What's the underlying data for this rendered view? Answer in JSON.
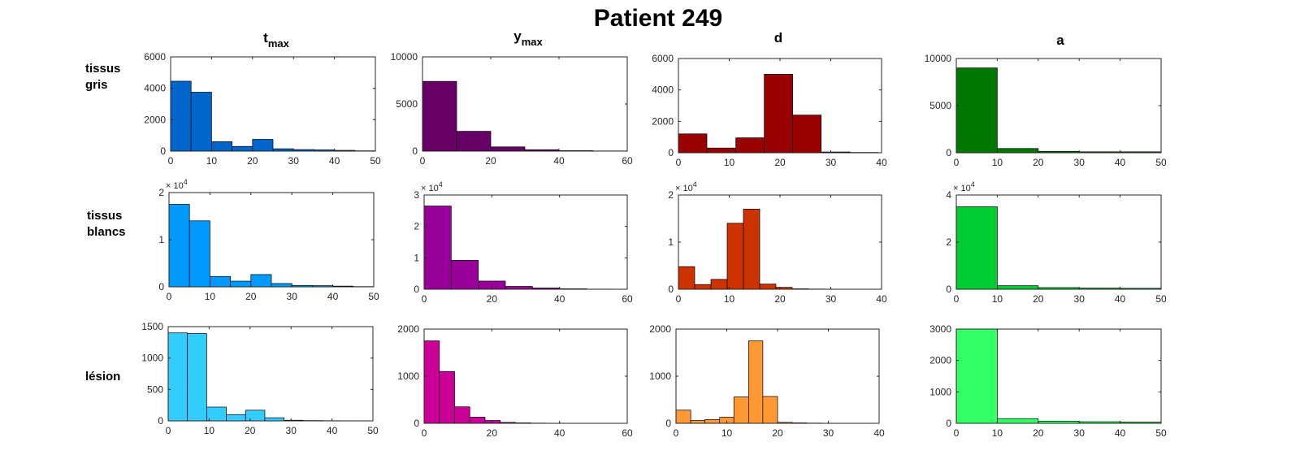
{
  "title": "Patient 249",
  "columns": [
    {
      "base": "t",
      "sub": "max"
    },
    {
      "base": "y",
      "sub": "max"
    },
    {
      "base": "d",
      "sub": ""
    },
    {
      "base": "a",
      "sub": ""
    }
  ],
  "rows": [
    {
      "line1": "tissus",
      "line2": "gris"
    },
    {
      "line1": "tissus",
      "line2": "blancs"
    },
    {
      "line1": "lésion",
      "line2": ""
    }
  ],
  "exponent_label": {
    "base": "× 10",
    "exp": "4"
  },
  "chart_data": [
    {
      "type": "bar",
      "panel": "tissus gris / tmax",
      "color": "#0066CC",
      "xlim": [
        0,
        50
      ],
      "xticks": [
        0,
        10,
        20,
        30,
        40,
        50
      ],
      "ylim": [
        0,
        6000
      ],
      "yticks": [
        0,
        2000,
        4000,
        6000
      ],
      "ytick_labels": [
        "0",
        "2000",
        "4000",
        "6000"
      ],
      "multiplier": false,
      "edges": [
        0,
        5,
        10,
        15,
        20,
        25,
        30,
        35,
        40,
        45,
        50
      ],
      "values": [
        4450,
        3750,
        600,
        300,
        750,
        150,
        100,
        80,
        50,
        20
      ]
    },
    {
      "type": "bar",
      "panel": "tissus gris / ymax",
      "color": "#660066",
      "xlim": [
        0,
        60
      ],
      "xticks": [
        0,
        20,
        40,
        60
      ],
      "ylim": [
        0,
        10000
      ],
      "yticks": [
        0,
        5000,
        10000
      ],
      "ytick_labels": [
        "0",
        "5000",
        "10000"
      ],
      "multiplier": false,
      "edges": [
        0,
        10,
        20,
        30,
        40,
        50,
        60
      ],
      "values": [
        7400,
        2100,
        450,
        150,
        50,
        20
      ]
    },
    {
      "type": "bar",
      "panel": "tissus gris / d",
      "color": "#990000",
      "xlim": [
        0,
        40
      ],
      "xticks": [
        0,
        10,
        20,
        30,
        40
      ],
      "ylim": [
        0,
        6000
      ],
      "yticks": [
        0,
        2000,
        4000,
        6000
      ],
      "ytick_labels": [
        "0",
        "2000",
        "4000",
        "6000"
      ],
      "multiplier": false,
      "edges": [
        0,
        5.6,
        11.3,
        16.9,
        22.5,
        28.1,
        33.8,
        39.4
      ],
      "values": [
        1200,
        300,
        950,
        5000,
        2400,
        50,
        20
      ]
    },
    {
      "type": "bar",
      "panel": "tissus gris / a",
      "color": "#007700",
      "xlim": [
        0,
        50
      ],
      "xticks": [
        0,
        10,
        20,
        30,
        40,
        50
      ],
      "ylim": [
        0,
        10000
      ],
      "yticks": [
        0,
        5000,
        10000
      ],
      "ytick_labels": [
        "0",
        "5000",
        "10000"
      ],
      "multiplier": false,
      "edges": [
        0,
        10,
        20,
        30,
        40,
        50
      ],
      "values": [
        9000,
        450,
        150,
        100,
        100
      ]
    },
    {
      "type": "bar",
      "panel": "tissus blancs / tmax",
      "color": "#0099FF",
      "xlim": [
        0,
        50
      ],
      "xticks": [
        0,
        10,
        20,
        30,
        40,
        50
      ],
      "ylim": [
        0,
        20000
      ],
      "yticks": [
        0,
        10000,
        20000
      ],
      "ytick_labels": [
        "0",
        "1",
        "2"
      ],
      "multiplier": true,
      "edges": [
        0,
        5,
        10,
        15,
        20,
        25,
        30,
        35,
        40,
        45,
        50
      ],
      "values": [
        17500,
        14000,
        2200,
        1200,
        2600,
        700,
        300,
        250,
        150,
        50
      ]
    },
    {
      "type": "bar",
      "panel": "tissus blancs / ymax",
      "color": "#990099",
      "xlim": [
        0,
        60
      ],
      "xticks": [
        0,
        20,
        40,
        60
      ],
      "ylim": [
        0,
        30000
      ],
      "yticks": [
        0,
        10000,
        20000,
        30000
      ],
      "ytick_labels": [
        "0",
        "1",
        "2",
        "3"
      ],
      "multiplier": true,
      "edges": [
        0,
        8,
        16,
        24,
        32,
        40,
        48,
        56
      ],
      "values": [
        26500,
        9200,
        2600,
        900,
        400,
        150,
        50
      ]
    },
    {
      "type": "bar",
      "panel": "tissus blancs / d",
      "color": "#CC3300",
      "xlim": [
        0,
        40
      ],
      "xticks": [
        0,
        10,
        20,
        30,
        40
      ],
      "ylim": [
        0,
        20000
      ],
      "yticks": [
        0,
        10000,
        20000
      ],
      "ytick_labels": [
        "0",
        "1",
        "2"
      ],
      "multiplier": true,
      "edges": [
        0,
        3.2,
        6.4,
        9.6,
        12.8,
        16,
        19.2,
        22.4,
        25.6,
        28.8,
        32,
        35.2,
        38.4
      ],
      "values": [
        4800,
        1000,
        2100,
        14000,
        17000,
        1100,
        400,
        100,
        50,
        30,
        20,
        10
      ]
    },
    {
      "type": "bar",
      "panel": "tissus blancs / a",
      "color": "#00CC33",
      "xlim": [
        0,
        50
      ],
      "xticks": [
        0,
        10,
        20,
        30,
        40,
        50
      ],
      "ylim": [
        0,
        40000
      ],
      "yticks": [
        0,
        20000,
        40000
      ],
      "ytick_labels": [
        "0",
        "2",
        "4"
      ],
      "multiplier": true,
      "edges": [
        0,
        10,
        20,
        30,
        40,
        50
      ],
      "values": [
        35000,
        1500,
        700,
        500,
        400
      ]
    },
    {
      "type": "bar",
      "panel": "lésion / tmax",
      "color": "#33CCFF",
      "xlim": [
        0,
        50
      ],
      "xticks": [
        0,
        10,
        20,
        30,
        40,
        50
      ],
      "ylim": [
        0,
        1500
      ],
      "yticks": [
        0,
        500,
        1000,
        1500
      ],
      "ytick_labels": [
        "0",
        "500",
        "1000",
        "1500"
      ],
      "multiplier": false,
      "edges": [
        0,
        4.7,
        9.4,
        14.2,
        18.9,
        23.6,
        28.3,
        33,
        37.8,
        42.5,
        47.2
      ],
      "values": [
        1400,
        1390,
        220,
        100,
        170,
        50,
        10,
        5,
        3,
        2
      ]
    },
    {
      "type": "bar",
      "panel": "lésion / ymax",
      "color": "#CC0099",
      "xlim": [
        0,
        60
      ],
      "xticks": [
        0,
        20,
        40,
        60
      ],
      "ylim": [
        0,
        2000
      ],
      "yticks": [
        0,
        1000,
        2000
      ],
      "ytick_labels": [
        "0",
        "1000",
        "2000"
      ],
      "multiplier": false,
      "edges": [
        0,
        4.5,
        9,
        13.5,
        18,
        22.5,
        27,
        31.5,
        36,
        40.5,
        45,
        49.5,
        54
      ],
      "values": [
        1750,
        1100,
        350,
        130,
        60,
        20,
        10,
        5,
        3,
        2,
        2,
        1
      ]
    },
    {
      "type": "bar",
      "panel": "lésion / d",
      "color": "#FF9933",
      "xlim": [
        0,
        40
      ],
      "xticks": [
        0,
        10,
        20,
        30,
        40
      ],
      "ylim": [
        0,
        2000
      ],
      "yticks": [
        0,
        1000,
        2000
      ],
      "ytick_labels": [
        "0",
        "1000",
        "2000"
      ],
      "multiplier": false,
      "edges": [
        0,
        2.9,
        5.7,
        8.6,
        11.4,
        14.3,
        17.1,
        20,
        22.9,
        25.7,
        28.6,
        31.4,
        34.3
      ],
      "values": [
        280,
        60,
        80,
        130,
        560,
        1750,
        570,
        20,
        10,
        5,
        3,
        2
      ]
    },
    {
      "type": "bar",
      "panel": "lésion / a",
      "color": "#33FF66",
      "xlim": [
        0,
        50
      ],
      "xticks": [
        0,
        10,
        20,
        30,
        40,
        50
      ],
      "ylim": [
        0,
        3000
      ],
      "yticks": [
        0,
        1000,
        2000,
        3000
      ],
      "ytick_labels": [
        "0",
        "1000",
        "2000",
        "3000"
      ],
      "multiplier": false,
      "edges": [
        0,
        10,
        20,
        30,
        40,
        50
      ],
      "values": [
        3000,
        150,
        70,
        50,
        40
      ]
    }
  ]
}
